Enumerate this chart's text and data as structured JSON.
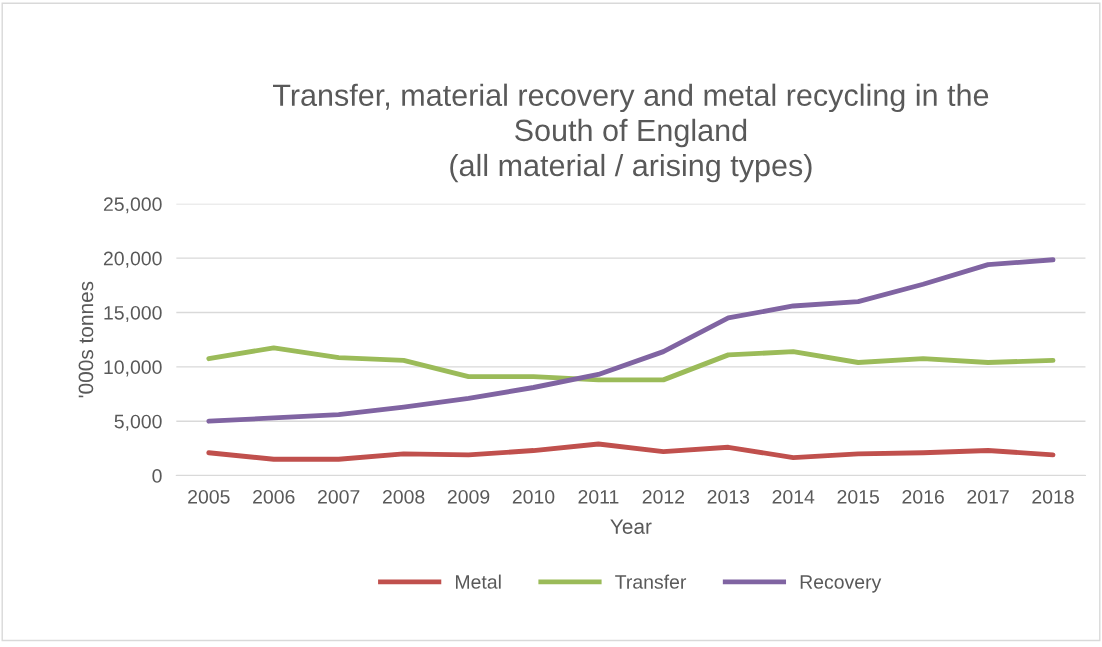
{
  "chart_data": {
    "type": "line",
    "title": "Transfer, material recovery and metal recycling in the\nSouth of England\n(all material / arising types)",
    "xlabel": "Year",
    "ylabel": "'000s tonnes",
    "categories": [
      "2005",
      "2006",
      "2007",
      "2008",
      "2009",
      "2010",
      "2011",
      "2012",
      "2013",
      "2014",
      "2015",
      "2016",
      "2017",
      "2018"
    ],
    "series": [
      {
        "name": "Metal",
        "color": "#c0504d",
        "values": [
          2100,
          1500,
          1500,
          2000,
          1900,
          2300,
          2900,
          2200,
          2600,
          1650,
          2000,
          2100,
          2300,
          1900
        ]
      },
      {
        "name": "Transfer",
        "color": "#9bbb59",
        "values": [
          10750,
          11750,
          10850,
          10600,
          9100,
          9100,
          8800,
          8800,
          11100,
          11400,
          10400,
          10750,
          10400,
          10600
        ]
      },
      {
        "name": "Recovery",
        "color": "#8064a2",
        "values": [
          5000,
          5300,
          5600,
          6300,
          7100,
          8100,
          9300,
          11400,
          14500,
          15600,
          16000,
          17600,
          19400,
          19850
        ]
      }
    ],
    "ylim": [
      0,
      25000
    ],
    "yticks": [
      {
        "value": 0,
        "label": "0"
      },
      {
        "value": 5000,
        "label": "5,000"
      },
      {
        "value": 10000,
        "label": "10,000"
      },
      {
        "value": 15000,
        "label": "15,000"
      },
      {
        "value": 20000,
        "label": "20,000"
      },
      {
        "value": 25000,
        "label": "25,000"
      }
    ],
    "grid": "y",
    "legend": "bottom",
    "marker": "none",
    "line_style": "solid"
  }
}
